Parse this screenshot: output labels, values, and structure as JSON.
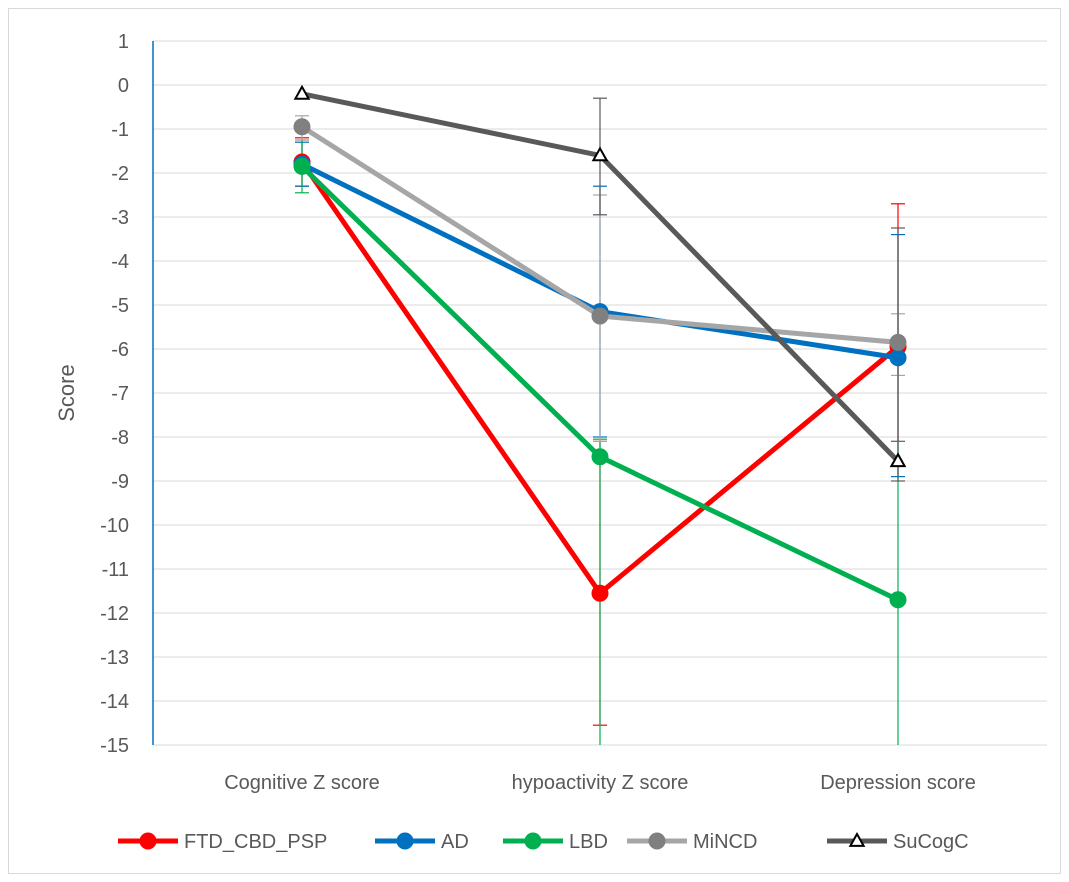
{
  "chart_data": {
    "type": "line",
    "title": "",
    "xlabel": "",
    "ylabel": "Score",
    "ylim": [
      -15,
      1
    ],
    "yticks": [
      1,
      0,
      -1,
      -2,
      -3,
      -4,
      -5,
      -6,
      -7,
      -8,
      -9,
      -10,
      -11,
      -12,
      -13,
      -14,
      -15
    ],
    "grid": true,
    "legend_position": "bottom",
    "categories": [
      "Cognitive Z score",
      "hypoactivity Z score",
      "Depression score"
    ],
    "series": [
      {
        "name": "FTD_CBD_PSP",
        "color": "#FF0000",
        "marker": "circle",
        "values": [
          -1.75,
          -11.55,
          -5.95
        ],
        "error_low": [
          -2.3,
          -14.55,
          -8.1
        ],
        "error_high": [
          -1.2,
          -8.1,
          -2.7
        ]
      },
      {
        "name": "AD",
        "color": "#0070C0",
        "marker": "circle",
        "values": [
          -1.8,
          -5.15,
          -6.2
        ],
        "error_low": [
          -2.3,
          -8.0,
          -8.9
        ],
        "error_high": [
          -1.3,
          -2.3,
          -3.4
        ]
      },
      {
        "name": "LBD",
        "color": "#00B050",
        "marker": "circle",
        "values": [
          -1.85,
          -8.45,
          -11.7
        ],
        "error_low": [
          -2.45,
          -15.0,
          -15.0
        ],
        "error_high": [
          -1.25,
          -8.05,
          -8.1
        ]
      },
      {
        "name": "MiNCD",
        "color": "#A6A6A6",
        "marker": "circle",
        "values": [
          -0.95,
          -5.25,
          -5.85
        ],
        "error_low": [
          -1.25,
          -8.1,
          -6.6
        ],
        "error_high": [
          -0.7,
          -2.5,
          -5.2
        ]
      },
      {
        "name": "SuCogC",
        "color": "#595959",
        "marker": "triangle",
        "values": [
          -0.2,
          -1.6,
          -8.55
        ],
        "error_low": [
          -0.2,
          -2.95,
          -9.0
        ],
        "error_high": [
          -0.2,
          -0.3,
          -3.25
        ]
      }
    ]
  }
}
